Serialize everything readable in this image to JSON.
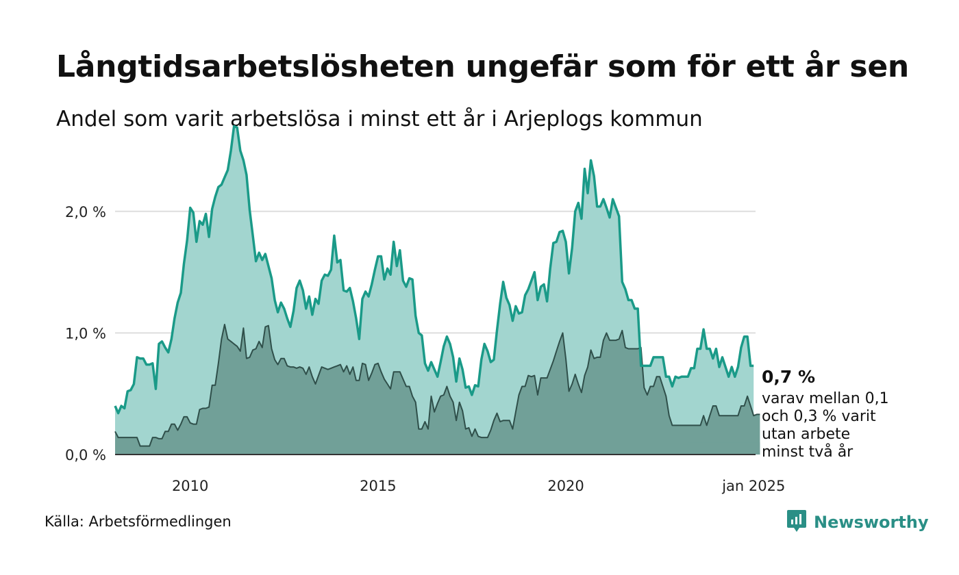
{
  "title": "Långtidsarbetslösheten ungefär som för ett år sen",
  "subtitle": "Andel som varit arbetslösa i minst ett år i Arjeplogs kommun",
  "source": "Källa: Arbetsförmedlingen",
  "brand": "Newsworthy",
  "brand_icon": "bar-chart-speech-icon",
  "annotation": {
    "value": "0,7 %",
    "text_lines": [
      "varav mellan 0,1",
      "och 0,3 % varit",
      "utan arbete",
      "minst två år"
    ]
  },
  "colors": {
    "line_total": "#1a9a88",
    "area_total": "#a2d5cf",
    "line_long": "#2f4f4a",
    "area_long": "#71a098",
    "range_band": "#8fbeb8",
    "grid": "#dddddd",
    "axis": "#333333",
    "brand": "#2a8f86"
  },
  "chart_data": {
    "type": "area",
    "x_start": 2008.0,
    "x_step": 0.08333,
    "xlim": [
      2008.0,
      2025.05
    ],
    "ylim": [
      0,
      2.5
    ],
    "ylabel": "",
    "xlabel": "",
    "y_ticks": [
      {
        "value": 0.0,
        "label": "0,0 %"
      },
      {
        "value": 1.0,
        "label": "1,0 %"
      },
      {
        "value": 2.0,
        "label": "2,0 %"
      }
    ],
    "x_ticks": [
      {
        "value": 2010,
        "label": "2010"
      },
      {
        "value": 2015,
        "label": "2015"
      },
      {
        "value": 2020,
        "label": "2020"
      },
      {
        "value": 2025,
        "label": "jan 2025"
      }
    ],
    "series": [
      {
        "name": "Arbetslösa minst ett år",
        "values": [
          0.4,
          0.34,
          0.4,
          0.38,
          0.52,
          0.53,
          0.58,
          0.8,
          0.79,
          0.79,
          0.74,
          0.74,
          0.75,
          0.54,
          0.91,
          0.93,
          0.88,
          0.84,
          0.95,
          1.12,
          1.25,
          1.33,
          1.57,
          1.76,
          2.03,
          1.99,
          1.75,
          1.92,
          1.89,
          1.98,
          1.79,
          2.02,
          2.12,
          2.2,
          2.22,
          2.28,
          2.34,
          2.5,
          2.7,
          2.69,
          2.5,
          2.42,
          2.3,
          2.01,
          1.8,
          1.59,
          1.66,
          1.6,
          1.65,
          1.55,
          1.45,
          1.27,
          1.17,
          1.25,
          1.2,
          1.12,
          1.05,
          1.18,
          1.37,
          1.43,
          1.35,
          1.2,
          1.3,
          1.15,
          1.28,
          1.24,
          1.43,
          1.48,
          1.47,
          1.52,
          1.8,
          1.58,
          1.6,
          1.35,
          1.34,
          1.37,
          1.26,
          1.12,
          0.95,
          1.28,
          1.34,
          1.3,
          1.4,
          1.52,
          1.63,
          1.63,
          1.44,
          1.53,
          1.48,
          1.75,
          1.55,
          1.68,
          1.43,
          1.38,
          1.45,
          1.44,
          1.14,
          1.0,
          0.98,
          0.75,
          0.69,
          0.76,
          0.7,
          0.64,
          0.76,
          0.89,
          0.97,
          0.91,
          0.8,
          0.6,
          0.79,
          0.7,
          0.55,
          0.56,
          0.49,
          0.57,
          0.56,
          0.78,
          0.91,
          0.85,
          0.76,
          0.78,
          1.02,
          1.24,
          1.42,
          1.29,
          1.23,
          1.1,
          1.22,
          1.16,
          1.17,
          1.31,
          1.36,
          1.43,
          1.5,
          1.27,
          1.38,
          1.4,
          1.26,
          1.53,
          1.74,
          1.75,
          1.83,
          1.84,
          1.75,
          1.49,
          1.7,
          2.0,
          2.07,
          1.94,
          2.35,
          2.15,
          2.42,
          2.29,
          2.04,
          2.04,
          2.1,
          2.03,
          1.95,
          2.1,
          2.03,
          1.96,
          1.42,
          1.36,
          1.27,
          1.27,
          1.2,
          1.2,
          0.73,
          0.73,
          0.73,
          0.73,
          0.8,
          0.8,
          0.8,
          0.8,
          0.64,
          0.64,
          0.56,
          0.64,
          0.63,
          0.64,
          0.64,
          0.64,
          0.71,
          0.71,
          0.87,
          0.87,
          1.03,
          0.87,
          0.87,
          0.79,
          0.87,
          0.72,
          0.8,
          0.72,
          0.64,
          0.72,
          0.64,
          0.72,
          0.88,
          0.97,
          0.97,
          0.73,
          0.73
        ]
      },
      {
        "name": "Arbetslösa minst två år",
        "values": [
          0.19,
          0.14,
          0.14,
          0.14,
          0.14,
          0.14,
          0.14,
          0.14,
          0.07,
          0.07,
          0.07,
          0.07,
          0.14,
          0.14,
          0.13,
          0.13,
          0.19,
          0.19,
          0.25,
          0.25,
          0.2,
          0.25,
          0.31,
          0.31,
          0.26,
          0.25,
          0.25,
          0.37,
          0.38,
          0.38,
          0.39,
          0.57,
          0.57,
          0.75,
          0.95,
          1.07,
          0.95,
          0.93,
          0.91,
          0.89,
          0.85,
          1.04,
          0.79,
          0.8,
          0.86,
          0.87,
          0.93,
          0.88,
          1.05,
          1.06,
          0.87,
          0.78,
          0.74,
          0.79,
          0.79,
          0.73,
          0.72,
          0.72,
          0.71,
          0.72,
          0.71,
          0.66,
          0.72,
          0.64,
          0.58,
          0.65,
          0.72,
          0.71,
          0.7,
          0.71,
          0.72,
          0.73,
          0.74,
          0.68,
          0.73,
          0.66,
          0.72,
          0.61,
          0.61,
          0.75,
          0.74,
          0.61,
          0.67,
          0.74,
          0.75,
          0.68,
          0.62,
          0.58,
          0.54,
          0.68,
          0.68,
          0.68,
          0.62,
          0.56,
          0.56,
          0.48,
          0.43,
          0.21,
          0.21,
          0.27,
          0.21,
          0.48,
          0.35,
          0.42,
          0.48,
          0.49,
          0.56,
          0.48,
          0.43,
          0.28,
          0.43,
          0.36,
          0.21,
          0.22,
          0.15,
          0.21,
          0.15,
          0.14,
          0.14,
          0.14,
          0.2,
          0.28,
          0.34,
          0.27,
          0.28,
          0.28,
          0.28,
          0.21,
          0.35,
          0.49,
          0.56,
          0.56,
          0.65,
          0.64,
          0.65,
          0.49,
          0.63,
          0.63,
          0.63,
          0.7,
          0.77,
          0.85,
          0.93,
          1.0,
          0.79,
          0.52,
          0.58,
          0.66,
          0.58,
          0.51,
          0.65,
          0.72,
          0.86,
          0.79,
          0.8,
          0.8,
          0.94,
          1.0,
          0.94,
          0.94,
          0.94,
          0.95,
          1.02,
          0.88,
          0.87,
          0.87,
          0.87,
          0.87,
          0.88,
          0.55,
          0.49,
          0.56,
          0.56,
          0.64,
          0.64,
          0.56,
          0.48,
          0.32,
          0.24,
          0.24,
          0.24,
          0.24,
          0.24,
          0.24,
          0.24,
          0.24,
          0.24,
          0.24,
          0.32,
          0.24,
          0.32,
          0.4,
          0.4,
          0.32,
          0.32,
          0.32,
          0.32,
          0.32,
          0.32,
          0.32,
          0.4,
          0.4,
          0.48,
          0.4,
          0.32,
          0.33,
          0.33
        ]
      }
    ]
  }
}
